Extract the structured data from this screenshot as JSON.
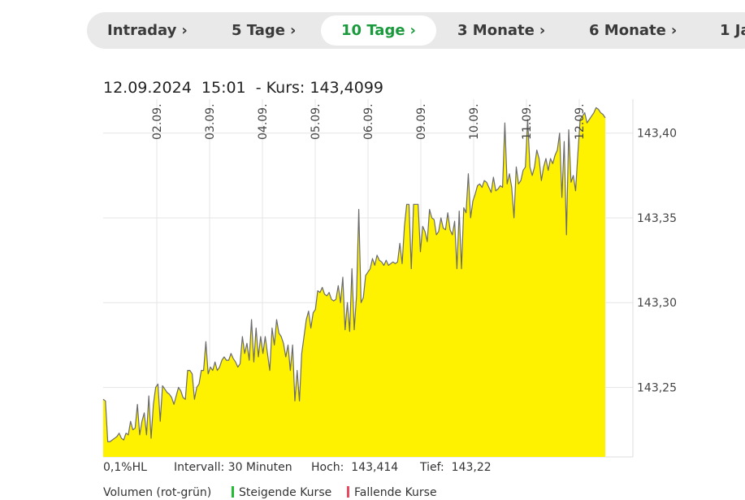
{
  "tabs": [
    {
      "label": "Intraday",
      "active": false
    },
    {
      "label": "5 Tage",
      "active": false
    },
    {
      "label": "10 Tage",
      "active": true
    },
    {
      "label": "3 Monate",
      "active": false
    },
    {
      "label": "6 Monate",
      "active": false
    },
    {
      "label": "1 Ja",
      "active": false
    }
  ],
  "header": {
    "date": "12.09.2024",
    "time": "15:01",
    "kurs_label": "- Kurs: 143,4099"
  },
  "stats": {
    "hl": "0,1%HL",
    "interval": "Intervall: 30 Minuten",
    "high": "Hoch:  143,414",
    "low": "Tief:  143,22"
  },
  "legend": {
    "volume": "Volumen (rot-grün)",
    "rising": "Steigende Kurse",
    "falling": "Fallende Kurse"
  },
  "colors": {
    "area_fill": "#fff200",
    "line": "#6b6b6b",
    "grid": "#e6e6e6",
    "active_tab": "#1a9a3c",
    "rising": "#22bb33",
    "falling": "#e84a5f"
  },
  "chart_data": {
    "type": "area",
    "x_ticks": [
      "02.09.",
      "03.09.",
      "04.09.",
      "05.09.",
      "06.09.",
      "09.09.",
      "10.09.",
      "11.09.",
      "12.09."
    ],
    "y_ticks": [
      "143,25",
      "143,30",
      "143,35",
      "143,40"
    ],
    "ylim": [
      143.209,
      143.42
    ],
    "y_tick_values": [
      143.25,
      143.3,
      143.35,
      143.4
    ],
    "grid": true,
    "series": [
      {
        "values": [
          143.243,
          143.242,
          143.218,
          143.218,
          143.219,
          143.22,
          143.221,
          143.223,
          143.22,
          143.219,
          143.223,
          143.222,
          143.23,
          143.225,
          143.226,
          143.24,
          143.222,
          143.23,
          143.235,
          143.222,
          143.245,
          143.22,
          143.24,
          143.25,
          143.252,
          143.23,
          143.251,
          143.249,
          143.247,
          143.246,
          143.244,
          143.24,
          143.245,
          143.25,
          143.248,
          143.244,
          143.243,
          143.26,
          143.26,
          143.258,
          143.243,
          143.25,
          143.252,
          143.26,
          143.26,
          143.277,
          143.258,
          143.262,
          143.26,
          143.265,
          143.26,
          143.262,
          143.266,
          143.268,
          143.266,
          143.266,
          143.27,
          143.267,
          143.265,
          143.262,
          143.264,
          143.28,
          143.27,
          143.276,
          143.266,
          143.29,
          143.265,
          143.285,
          143.268,
          143.28,
          143.27,
          143.28,
          143.27,
          143.26,
          143.285,
          143.275,
          143.29,
          143.282,
          143.28,
          143.276,
          143.268,
          143.275,
          143.26,
          143.275,
          143.242,
          143.26,
          143.242,
          143.27,
          143.28,
          143.29,
          143.295,
          143.285,
          143.294,
          143.296,
          143.307,
          143.306,
          143.309,
          143.305,
          143.304,
          143.306,
          143.302,
          143.301,
          143.302,
          143.31,
          143.3,
          143.315,
          143.284,
          143.3,
          143.283,
          143.32,
          143.284,
          143.304,
          143.355,
          143.3,
          143.303,
          143.316,
          143.318,
          143.32,
          143.326,
          143.322,
          143.328,
          143.325,
          143.324,
          143.322,
          143.325,
          143.322,
          143.323,
          143.324,
          143.323,
          143.324,
          143.335,
          143.323,
          143.345,
          143.358,
          143.358,
          143.32,
          143.358,
          143.358,
          143.358,
          143.33,
          143.345,
          143.342,
          143.336,
          143.355,
          143.35,
          143.349,
          143.34,
          143.342,
          143.35,
          143.344,
          143.343,
          143.353,
          143.343,
          143.34,
          143.348,
          143.32,
          143.354,
          143.32,
          143.356,
          143.353,
          143.376,
          143.35,
          143.36,
          143.364,
          143.369,
          143.37,
          143.368,
          143.372,
          143.371,
          143.368,
          143.365,
          143.374,
          143.366,
          143.367,
          143.369,
          143.368,
          143.406,
          143.37,
          143.376,
          143.368,
          143.35,
          143.38,
          143.37,
          143.372,
          143.378,
          143.38,
          143.408,
          143.38,
          143.375,
          143.38,
          143.39,
          143.385,
          143.372,
          143.38,
          143.385,
          143.378,
          143.385,
          143.382,
          143.387,
          143.39,
          143.4,
          143.362,
          143.395,
          143.34,
          143.402,
          143.371,
          143.375,
          143.366,
          143.388,
          143.408,
          143.41,
          143.412,
          143.406,
          143.408,
          143.41,
          143.412,
          143.415,
          143.414,
          143.412,
          143.411,
          143.409
        ]
      }
    ]
  }
}
